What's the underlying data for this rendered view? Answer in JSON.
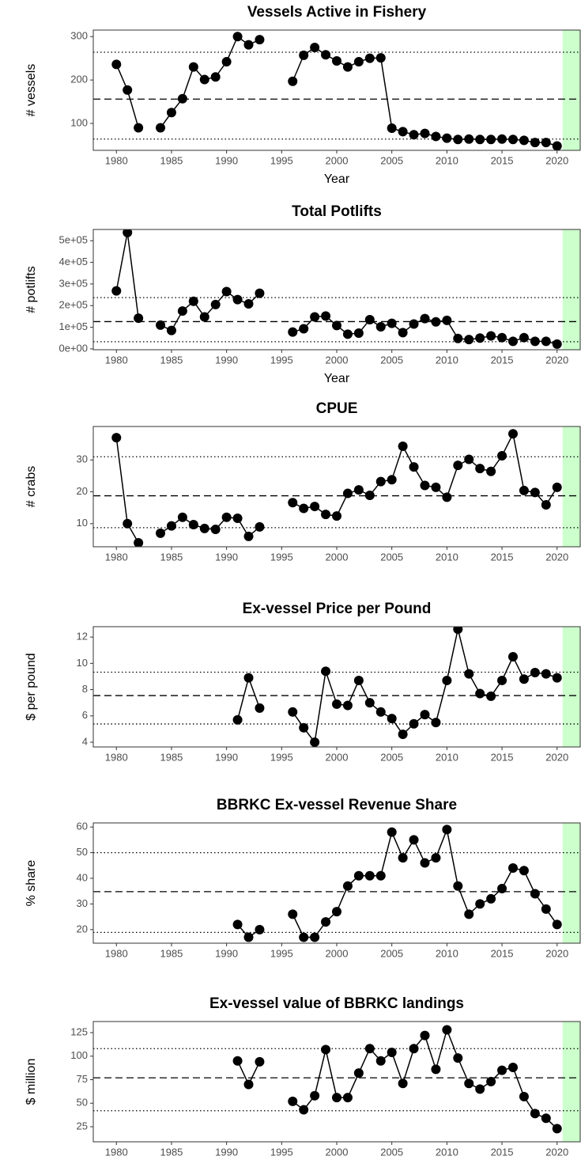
{
  "chart_data": [
    {
      "type": "line",
      "title": "Vessels Active in Fishery",
      "xlabel": "Year",
      "ylabel": "# vessels",
      "color": "#000000",
      "x": [
        1980,
        1981,
        1982,
        1983,
        1984,
        1985,
        1986,
        1987,
        1988,
        1989,
        1990,
        1991,
        1992,
        1993,
        1994,
        1995,
        1996,
        1997,
        1998,
        1999,
        2000,
        2001,
        2002,
        2003,
        2004,
        2005,
        2006,
        2007,
        2008,
        2009,
        2010,
        2011,
        2012,
        2013,
        2014,
        2015,
        2016,
        2017,
        2018,
        2019,
        2020
      ],
      "values": [
        236,
        177,
        90,
        null,
        90,
        125,
        157,
        230,
        201,
        207,
        242,
        300,
        281,
        293,
        null,
        null,
        197,
        257,
        275,
        258,
        244,
        230,
        242,
        250,
        251,
        89,
        81,
        74,
        77,
        70,
        66,
        63,
        64,
        63,
        63,
        64,
        63,
        61,
        56,
        56,
        48
      ],
      "xlim": [
        1977.9,
        2022.1
      ],
      "xticks": [
        1980,
        1985,
        1990,
        1995,
        2000,
        2005,
        2010,
        2015,
        2020
      ],
      "ylim": [
        38,
        315
      ],
      "yticks": [
        100,
        200,
        300
      ],
      "hlines": [
        {
          "value": 264,
          "style": "dotted"
        },
        {
          "value": 156,
          "style": "dashed"
        },
        {
          "value": 64,
          "style": "dotted"
        }
      ],
      "highlight": {
        "from": 2020.5,
        "color": "#ccffcc"
      }
    },
    {
      "type": "line",
      "title": "Total Potlifts",
      "xlabel": "Year",
      "ylabel": "# potlifts",
      "color": "#000000",
      "x": [
        1980,
        1981,
        1982,
        1983,
        1984,
        1985,
        1986,
        1987,
        1988,
        1989,
        1990,
        1991,
        1992,
        1993,
        1994,
        1995,
        1996,
        1997,
        1998,
        1999,
        2000,
        2001,
        2002,
        2003,
        2004,
        2005,
        2006,
        2007,
        2008,
        2009,
        2010,
        2011,
        2012,
        2013,
        2014,
        2015,
        2016,
        2017,
        2018,
        2019,
        2020
      ],
      "values": [
        268000,
        538000,
        142000,
        null,
        110000,
        85000,
        175000,
        220000,
        148000,
        205000,
        265000,
        228000,
        208000,
        257000,
        null,
        null,
        78000,
        93000,
        148000,
        152000,
        108000,
        68000,
        73000,
        135000,
        102000,
        118000,
        75000,
        115000,
        140000,
        125000,
        132000,
        48000,
        43000,
        50000,
        60000,
        52000,
        35000,
        52000,
        35000,
        35000,
        22000
      ],
      "xlim": [
        1977.9,
        2022.1
      ],
      "xticks": [
        1980,
        1985,
        1990,
        1995,
        2000,
        2005,
        2010,
        2015,
        2020
      ],
      "ylim": [
        -4000,
        552000
      ],
      "yticks": [
        {
          "value": 0,
          "label": "0e+00"
        },
        {
          "value": 100000,
          "label": "1e+05"
        },
        {
          "value": 200000,
          "label": "2e+05"
        },
        {
          "value": 300000,
          "label": "3e+05"
        },
        {
          "value": 400000,
          "label": "4e+05"
        },
        {
          "value": 500000,
          "label": "5e+05"
        }
      ],
      "hlines": [
        {
          "value": 237000,
          "style": "dotted"
        },
        {
          "value": 126000,
          "style": "dashed"
        },
        {
          "value": 33000,
          "style": "dotted"
        }
      ],
      "highlight": {
        "from": 2020.5,
        "color": "#ccffcc"
      }
    },
    {
      "type": "line",
      "title": "CPUE",
      "ylabel": "# crabs",
      "color": "#000000",
      "x": [
        1980,
        1981,
        1982,
        1983,
        1984,
        1985,
        1986,
        1987,
        1988,
        1989,
        1990,
        1991,
        1992,
        1993,
        1994,
        1995,
        1996,
        1997,
        1998,
        1999,
        2000,
        2001,
        2002,
        2003,
        2004,
        2005,
        2006,
        2007,
        2008,
        2009,
        2010,
        2011,
        2012,
        2013,
        2014,
        2015,
        2016,
        2017,
        2018,
        2019,
        2020
      ],
      "values": [
        37,
        10,
        4,
        null,
        7,
        9.3,
        12,
        9.7,
        8.5,
        8.2,
        12,
        11.7,
        6,
        9,
        null,
        null,
        16.6,
        14.8,
        15.4,
        12.9,
        12.4,
        19.5,
        20.6,
        18.9,
        23.2,
        23.8,
        34.3,
        27.8,
        22,
        21.4,
        18.3,
        28.3,
        30.2,
        27.3,
        26.4,
        31.3,
        38.2,
        20.4,
        19.8,
        15.9,
        21.4
      ],
      "xlim": [
        1977.9,
        2022.1
      ],
      "xticks": [
        1980,
        1985,
        1990,
        1995,
        2000,
        2005,
        2010,
        2015,
        2020
      ],
      "ylim": [
        2.75,
        40.5
      ],
      "yticks": [
        10,
        20,
        30
      ],
      "hlines": [
        {
          "value": 31,
          "style": "dotted"
        },
        {
          "value": 18.75,
          "style": "dashed"
        },
        {
          "value": 8.75,
          "style": "dotted"
        }
      ],
      "highlight": {
        "from": 2020.5,
        "color": "#ccffcc"
      }
    },
    {
      "type": "line",
      "title": "Ex-vessel Price per Pound",
      "ylabel": "$ per pound",
      "color": "#000000",
      "x": [
        1980,
        1981,
        1982,
        1983,
        1984,
        1985,
        1986,
        1987,
        1988,
        1989,
        1990,
        1991,
        1992,
        1993,
        1994,
        1995,
        1996,
        1997,
        1998,
        1999,
        2000,
        2001,
        2002,
        2003,
        2004,
        2005,
        2006,
        2007,
        2008,
        2009,
        2010,
        2011,
        2012,
        2013,
        2014,
        2015,
        2016,
        2017,
        2018,
        2019,
        2020
      ],
      "values": [
        null,
        null,
        null,
        null,
        null,
        null,
        null,
        null,
        null,
        null,
        null,
        5.7,
        8.9,
        6.6,
        null,
        null,
        6.3,
        5.1,
        4.0,
        9.4,
        6.9,
        6.8,
        8.7,
        7.0,
        6.3,
        5.8,
        4.6,
        5.4,
        6.1,
        5.5,
        8.7,
        12.6,
        9.2,
        7.7,
        7.5,
        8.7,
        10.5,
        8.8,
        9.3,
        9.2,
        8.9
      ],
      "xlim": [
        1977.9,
        2022.1
      ],
      "xticks": [
        1980,
        1985,
        1990,
        1995,
        2000,
        2005,
        2010,
        2015,
        2020
      ],
      "ylim": [
        3.64,
        12.79
      ],
      "yticks": [
        4,
        6,
        8,
        10,
        12
      ],
      "hlines": [
        {
          "value": 9.33,
          "style": "dotted"
        },
        {
          "value": 7.55,
          "style": "dashed"
        },
        {
          "value": 5.39,
          "style": "dotted"
        }
      ],
      "highlight": {
        "from": 2020.5,
        "color": "#ccffcc"
      }
    },
    {
      "type": "line",
      "title": "BBRKC Ex-vessel Revenue Share",
      "ylabel": "% share",
      "color": "#000000",
      "x": [
        1980,
        1981,
        1982,
        1983,
        1984,
        1985,
        1986,
        1987,
        1988,
        1989,
        1990,
        1991,
        1992,
        1993,
        1994,
        1995,
        1996,
        1997,
        1998,
        1999,
        2000,
        2001,
        2002,
        2003,
        2004,
        2005,
        2006,
        2007,
        2008,
        2009,
        2010,
        2011,
        2012,
        2013,
        2014,
        2015,
        2016,
        2017,
        2018,
        2019,
        2020
      ],
      "values": [
        null,
        null,
        null,
        null,
        null,
        null,
        null,
        null,
        null,
        null,
        null,
        22,
        17,
        20,
        null,
        null,
        26,
        17,
        17,
        23,
        27,
        37,
        41,
        41,
        41,
        58,
        48,
        55,
        46,
        48,
        59,
        37,
        26,
        30,
        32,
        36,
        44,
        43,
        34,
        28,
        22
      ],
      "xlim": [
        1977.9,
        2022.1
      ],
      "xticks": [
        1980,
        1985,
        1990,
        1995,
        2000,
        2005,
        2010,
        2015,
        2020
      ],
      "ylim": [
        14.7,
        61.6
      ],
      "yticks": [
        20,
        30,
        40,
        50,
        60
      ],
      "hlines": [
        {
          "value": 50,
          "style": "dotted"
        },
        {
          "value": 34.8,
          "style": "dashed"
        },
        {
          "value": 18.9,
          "style": "dotted"
        }
      ],
      "highlight": {
        "from": 2020.5,
        "color": "#ccffcc"
      }
    },
    {
      "type": "line",
      "title": "Ex-vessel value of BBRKC landings",
      "ylabel": "$ million",
      "color": "#000000",
      "x": [
        1980,
        1981,
        1982,
        1983,
        1984,
        1985,
        1986,
        1987,
        1988,
        1989,
        1990,
        1991,
        1992,
        1993,
        1994,
        1995,
        1996,
        1997,
        1998,
        1999,
        2000,
        2001,
        2002,
        2003,
        2004,
        2005,
        2006,
        2007,
        2008,
        2009,
        2010,
        2011,
        2012,
        2013,
        2014,
        2015,
        2016,
        2017,
        2018,
        2019,
        2020
      ],
      "values": [
        null,
        null,
        null,
        null,
        null,
        null,
        null,
        null,
        null,
        null,
        null,
        95,
        70,
        94,
        null,
        null,
        52,
        43,
        58,
        107,
        56,
        56,
        82,
        108,
        95,
        104,
        71,
        108,
        122,
        86,
        128,
        98,
        71,
        65,
        73,
        85,
        88,
        57,
        39,
        34,
        23
      ],
      "xlim": [
        1977.9,
        2022.1
      ],
      "xticks": [
        1980,
        1985,
        1990,
        1995,
        2000,
        2005,
        2010,
        2015,
        2020
      ],
      "ylim": [
        9,
        136.8
      ],
      "yticks": [
        25,
        50,
        75,
        100,
        125
      ],
      "hlines": [
        {
          "value": 108,
          "style": "dotted"
        },
        {
          "value": 77,
          "style": "dashed"
        },
        {
          "value": 42,
          "style": "dotted"
        }
      ],
      "highlight": {
        "from": 2020.5,
        "color": "#ccffcc"
      }
    }
  ]
}
